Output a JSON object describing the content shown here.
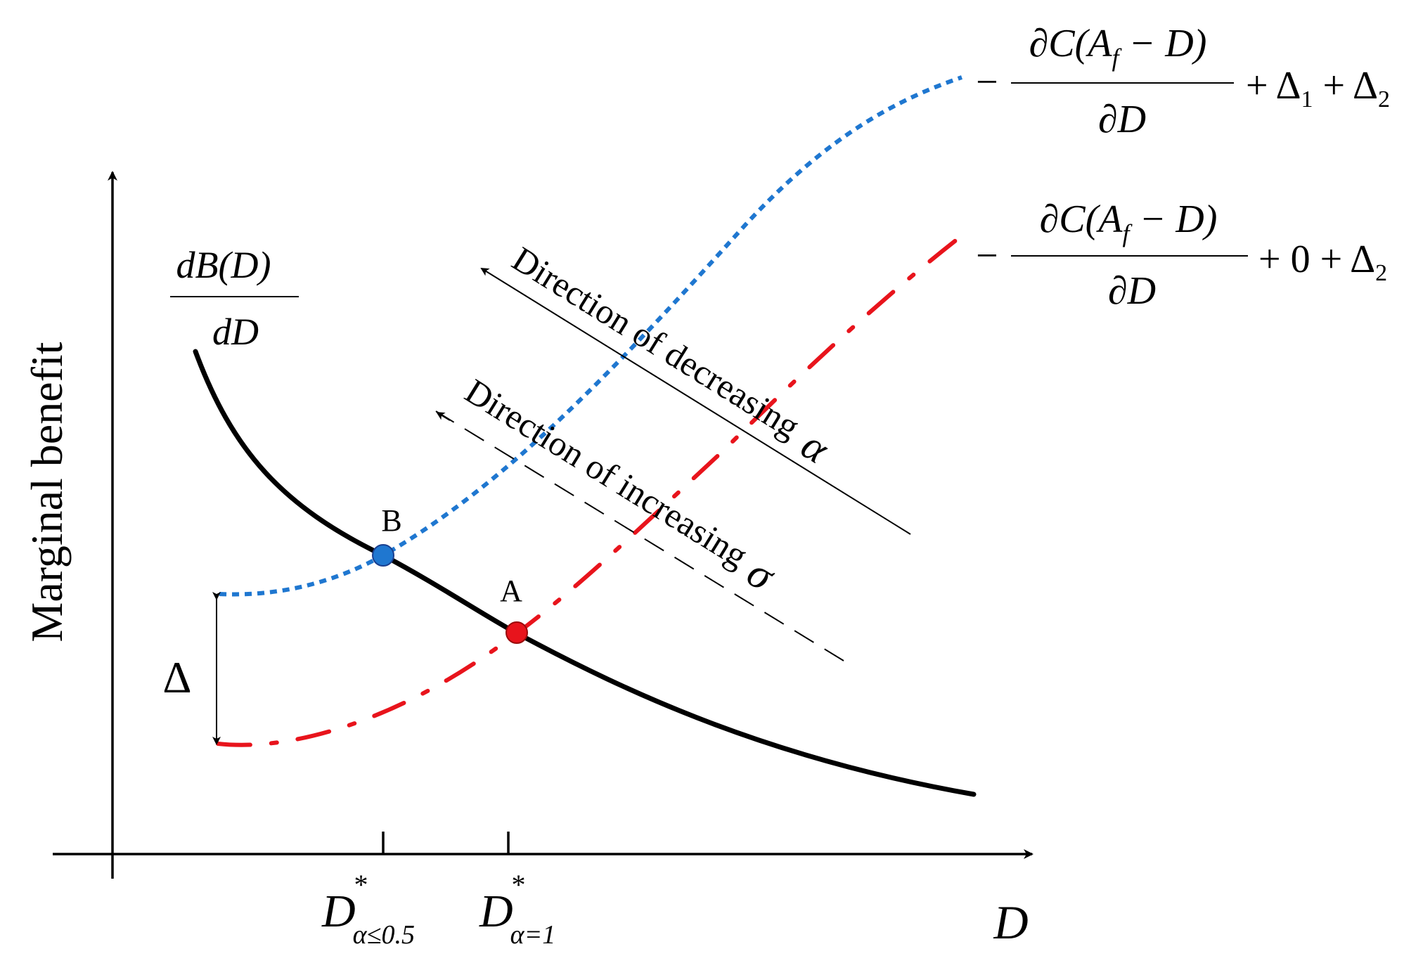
{
  "axes": {
    "y_label": "Marginal benefit",
    "x_label": "D"
  },
  "curves": {
    "benefit": {
      "label_num": "dB(D)",
      "label_den": "dD",
      "color": "#000000"
    },
    "cost_blue": {
      "color": "#1f77d0",
      "minus": "−",
      "num_prefix": "∂C(A",
      "num_sub": "f",
      "num_suffix": " − D)",
      "den": "∂D",
      "tail": "+ Δ",
      "tail_sub": "1",
      "tail2": " + Δ",
      "tail2_sub": "2"
    },
    "cost_red": {
      "color": "#e8141c",
      "minus": "−",
      "num_prefix": "∂C(A",
      "num_sub": "f",
      "num_suffix": " − D)",
      "den": "∂D",
      "tail": "+ 0 + Δ",
      "tail_sub": "2"
    }
  },
  "points": {
    "B": {
      "label": "B",
      "color": "#1f77d0"
    },
    "A": {
      "label": "A",
      "color": "#e8141c"
    }
  },
  "ticks": {
    "d_alpha_low": {
      "base": "D",
      "sup": "*",
      "sub": "α≤0.5"
    },
    "d_alpha_one": {
      "base": "D",
      "sup": "*",
      "sub": "α=1"
    }
  },
  "delta": {
    "label": "Δ"
  },
  "arrows": {
    "alpha": {
      "text": "Direction of decreasing",
      "symbol": "α"
    },
    "sigma": {
      "text": "Direction of increasing",
      "symbol": "σ"
    }
  }
}
